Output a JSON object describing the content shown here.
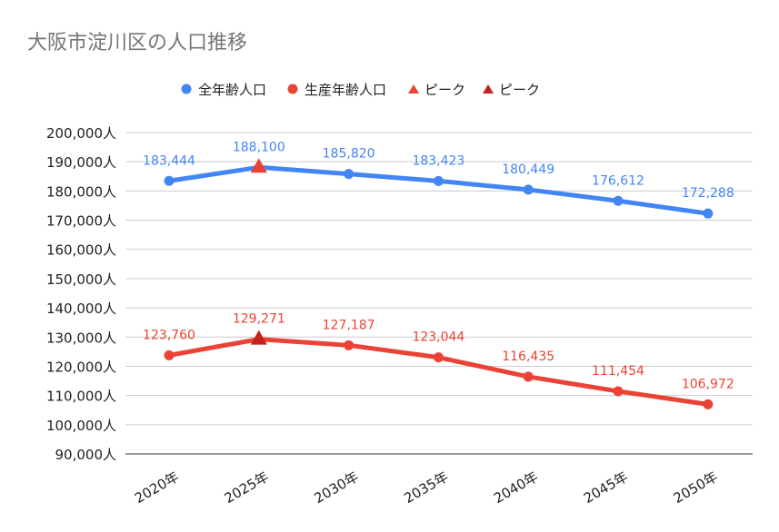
{
  "chart_data": {
    "type": "line",
    "title": "大阪市淀川区の人口推移",
    "categories": [
      "2020年",
      "2025年",
      "2030年",
      "2035年",
      "2040年",
      "2045年",
      "2050年"
    ],
    "ylim": [
      90000,
      200000
    ],
    "ytick_step": 10000,
    "ytick_suffix": "人",
    "grid": true,
    "legend_position": "top",
    "series": [
      {
        "name": "全年齢人口",
        "color": "#4285f4",
        "values": [
          183444,
          188100,
          185820,
          183423,
          180449,
          176612,
          172288
        ]
      },
      {
        "name": "生産年齢人口",
        "color": "#ea4335",
        "values": [
          123760,
          129271,
          127187,
          123044,
          116435,
          111454,
          106972
        ]
      }
    ],
    "peaks": [
      {
        "name": "ピーク",
        "color": "#ea4335",
        "series": 0,
        "category": "2025年"
      },
      {
        "name": "ピーク",
        "color": "#c5221f",
        "series": 1,
        "category": "2025年"
      }
    ]
  }
}
